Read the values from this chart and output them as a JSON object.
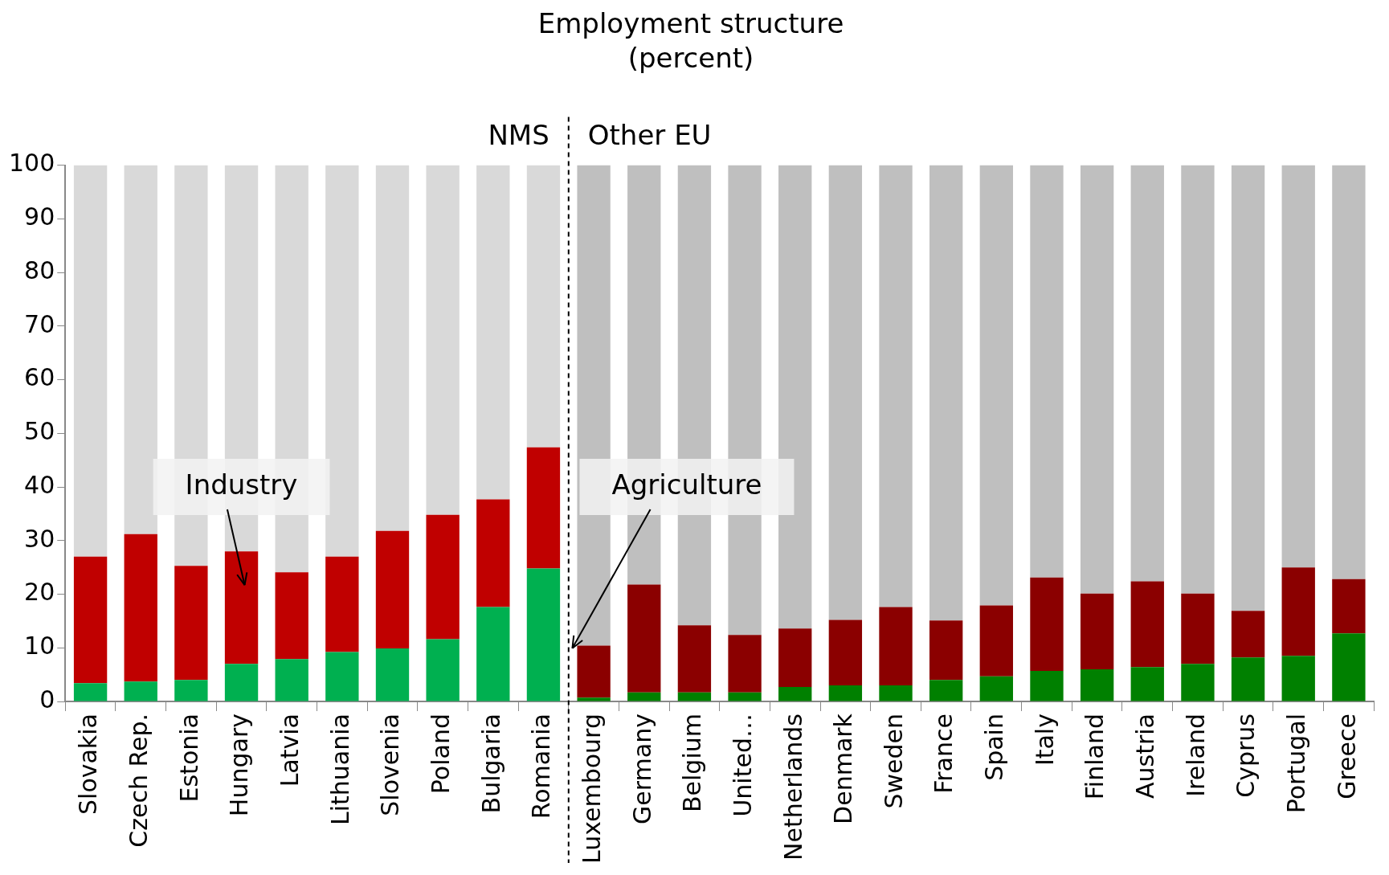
{
  "chart_data": {
    "type": "bar",
    "title": "Employment structure",
    "subtitle": "(percent)",
    "stacked": true,
    "categories": [
      "Slovakia",
      "Czech Rep.",
      "Estonia",
      "Hungary",
      "Latvia",
      "Lithuania",
      "Slovenia",
      "Poland",
      "Bulgaria",
      "Romania",
      "Luxembourg",
      "Germany",
      "Belgium",
      "United…",
      "Netherlands",
      "Denmark",
      "Sweden",
      "France",
      "Spain",
      "Italy",
      "Finland",
      "Austria",
      "Ireland",
      "Cyprus",
      "Portugal",
      "Greece"
    ],
    "series": [
      {
        "values": [
          3.4,
          3.7,
          4.0,
          7.0,
          7.9,
          9.2,
          9.9,
          11.6,
          17.6,
          24.8,
          0.7,
          1.7,
          1.7,
          1.7,
          2.7,
          3.0,
          3.0,
          4.0,
          4.7,
          5.7,
          6.0,
          6.4,
          7.0,
          8.2,
          8.5,
          12.7
        ],
        "colors": [
          "#00b050",
          "#00b050",
          "#00b050",
          "#00b050",
          "#00b050",
          "#00b050",
          "#00b050",
          "#00b050",
          "#00b050",
          "#00b050",
          "#008000",
          "#008000",
          "#008000",
          "#008000",
          "#008000",
          "#008000",
          "#008000",
          "#008000",
          "#008000",
          "#008000",
          "#008000",
          "#008000",
          "#008000",
          "#008000",
          "#008000",
          "#008000"
        ]
      },
      {
        "values": [
          23.6,
          27.5,
          21.3,
          21.0,
          16.2,
          17.8,
          21.9,
          23.2,
          20.1,
          22.6,
          9.7,
          20.1,
          12.5,
          10.7,
          10.9,
          12.2,
          14.6,
          11.1,
          13.2,
          17.4,
          14.1,
          16.0,
          13.1,
          8.7,
          16.5,
          10.1
        ],
        "colors": [
          "#c00000",
          "#c00000",
          "#c00000",
          "#c00000",
          "#c00000",
          "#c00000",
          "#c00000",
          "#c00000",
          "#c00000",
          "#c00000",
          "#8b0000",
          "#8b0000",
          "#8b0000",
          "#8b0000",
          "#8b0000",
          "#8b0000",
          "#8b0000",
          "#8b0000",
          "#8b0000",
          "#8b0000",
          "#8b0000",
          "#8b0000",
          "#8b0000",
          "#8b0000",
          "#8b0000",
          "#8b0000"
        ]
      },
      {
        "values": [
          73.0,
          68.8,
          74.7,
          72.0,
          75.9,
          73.0,
          68.2,
          65.2,
          62.3,
          52.6,
          89.6,
          78.2,
          85.8,
          87.6,
          86.4,
          84.8,
          82.4,
          84.9,
          82.1,
          76.9,
          79.9,
          77.6,
          79.9,
          83.1,
          75.0,
          77.2
        ],
        "colors": [
          "#d9d9d9",
          "#d9d9d9",
          "#d9d9d9",
          "#d9d9d9",
          "#d9d9d9",
          "#d9d9d9",
          "#d9d9d9",
          "#d9d9d9",
          "#d9d9d9",
          "#d9d9d9",
          "#bfbfbf",
          "#bfbfbf",
          "#bfbfbf",
          "#bfbfbf",
          "#bfbfbf",
          "#bfbfbf",
          "#bfbfbf",
          "#bfbfbf",
          "#bfbfbf",
          "#bfbfbf",
          "#bfbfbf",
          "#bfbfbf",
          "#bfbfbf",
          "#bfbfbf",
          "#bfbfbf",
          "#bfbfbf"
        ]
      }
    ],
    "ylim": [
      0,
      100
    ],
    "yticks": [
      0,
      10,
      20,
      30,
      40,
      50,
      60,
      70,
      80,
      90,
      100
    ],
    "grid": false,
    "legend": false,
    "annotations": [
      "NMS",
      "Other EU",
      "Industry",
      "Agriculture"
    ]
  }
}
